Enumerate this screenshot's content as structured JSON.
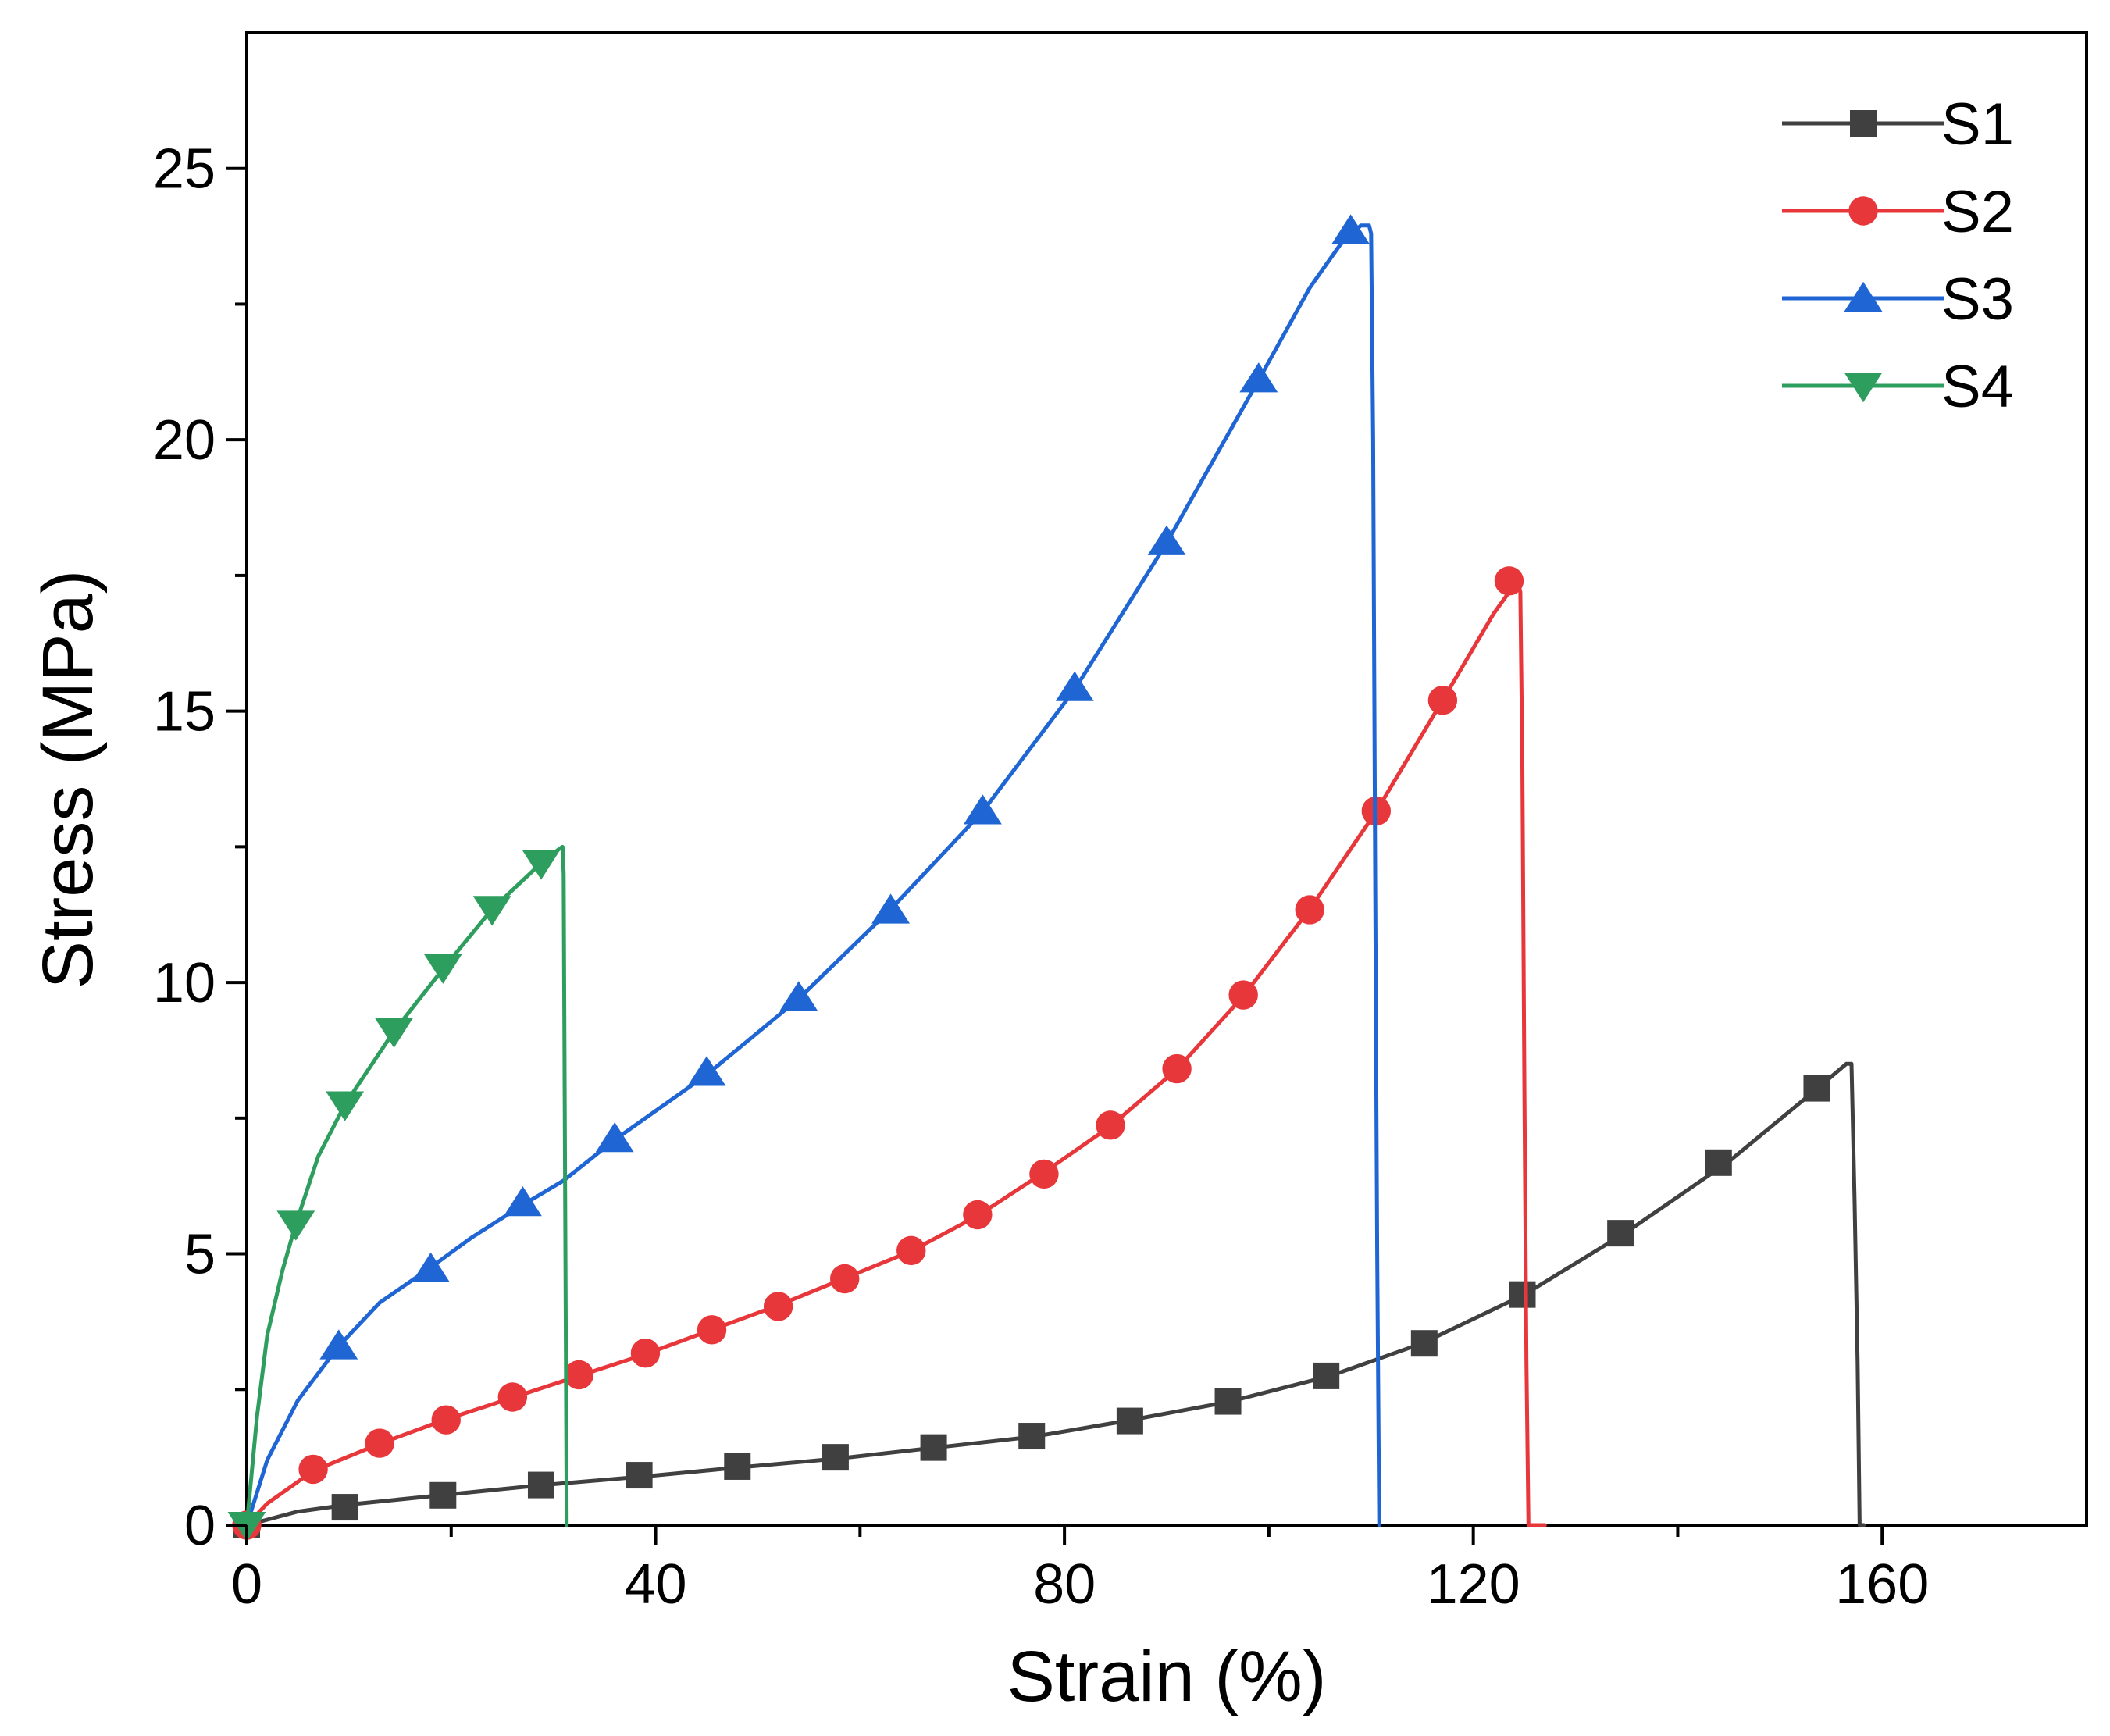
{
  "chart_data": {
    "type": "line",
    "title": "",
    "xlabel": "Strain (%)",
    "ylabel": "Stress (MPa)",
    "xlim": [
      0,
      180
    ],
    "ylim": [
      0,
      27.5
    ],
    "xticks": [
      0,
      40,
      80,
      120,
      160
    ],
    "xticks_minor": [
      20,
      60,
      100,
      140
    ],
    "yticks": [
      0,
      5,
      10,
      15,
      20,
      25
    ],
    "yticks_minor": [
      2.5,
      7.5,
      12.5,
      17.5,
      22.5
    ],
    "grid": false,
    "legend_position": "top-right",
    "series": [
      {
        "name": "S1",
        "color": "#404040",
        "marker": "square",
        "line": [
          [
            0,
            0
          ],
          [
            5,
            0.25
          ],
          [
            10,
            0.38
          ],
          [
            20,
            0.57
          ],
          [
            29,
            0.74
          ],
          [
            39,
            0.9
          ],
          [
            48,
            1.06
          ],
          [
            58,
            1.23
          ],
          [
            67,
            1.42
          ],
          [
            77,
            1.63
          ],
          [
            86,
            1.92
          ],
          [
            96,
            2.27
          ],
          [
            106,
            2.75
          ],
          [
            115,
            3.35
          ],
          [
            125,
            4.25
          ],
          [
            135,
            5.4
          ],
          [
            145,
            6.7
          ],
          [
            154,
            8.1
          ],
          [
            156.5,
            8.5
          ],
          [
            157,
            8.5
          ],
          [
            157.3,
            6.0
          ],
          [
            157.6,
            3.0
          ],
          [
            157.8,
            0
          ],
          [
            158.2,
            0
          ]
        ],
        "markers": [
          [
            0,
            0
          ],
          [
            9.6,
            0.33
          ],
          [
            19.2,
            0.55
          ],
          [
            28.8,
            0.74
          ],
          [
            38.4,
            0.92
          ],
          [
            48,
            1.08
          ],
          [
            57.6,
            1.25
          ],
          [
            67.2,
            1.43
          ],
          [
            76.8,
            1.64
          ],
          [
            86.4,
            1.92
          ],
          [
            96,
            2.28
          ],
          [
            105.6,
            2.75
          ],
          [
            115.2,
            3.35
          ],
          [
            124.8,
            4.25
          ],
          [
            134.4,
            5.38
          ],
          [
            144,
            6.68
          ],
          [
            153.6,
            8.05
          ]
        ]
      },
      {
        "name": "S2",
        "color": "#e8373a",
        "marker": "circle",
        "line": [
          [
            0,
            0
          ],
          [
            2,
            0.4
          ],
          [
            6.5,
            1.0
          ],
          [
            13,
            1.5
          ],
          [
            19.5,
            1.95
          ],
          [
            26,
            2.35
          ],
          [
            32.5,
            2.75
          ],
          [
            39,
            3.15
          ],
          [
            45.5,
            3.6
          ],
          [
            52,
            4.05
          ],
          [
            58.5,
            4.55
          ],
          [
            65,
            5.05
          ],
          [
            71.5,
            5.7
          ],
          [
            78,
            6.5
          ],
          [
            84.5,
            7.35
          ],
          [
            91,
            8.4
          ],
          [
            97.5,
            9.75
          ],
          [
            104,
            11.35
          ],
          [
            110.5,
            13.15
          ],
          [
            117,
            15.2
          ],
          [
            122,
            16.8
          ],
          [
            124.3,
            17.4
          ],
          [
            124.6,
            17.2
          ],
          [
            124.8,
            14.0
          ],
          [
            125.0,
            8.0
          ],
          [
            125.2,
            3.0
          ],
          [
            125.4,
            0
          ],
          [
            127,
            0
          ]
        ],
        "markers": [
          [
            0,
            0
          ],
          [
            6.5,
            1.03
          ],
          [
            13,
            1.51
          ],
          [
            19.5,
            1.94
          ],
          [
            26,
            2.36
          ],
          [
            32.5,
            2.77
          ],
          [
            39,
            3.17
          ],
          [
            45.5,
            3.6
          ],
          [
            52,
            4.03
          ],
          [
            58.5,
            4.54
          ],
          [
            65,
            5.06
          ],
          [
            71.5,
            5.72
          ],
          [
            78,
            6.47
          ],
          [
            84.5,
            7.37
          ],
          [
            91,
            8.41
          ],
          [
            97.5,
            9.77
          ],
          [
            104,
            11.34
          ],
          [
            110.5,
            13.16
          ],
          [
            117,
            15.2
          ],
          [
            123.5,
            17.4
          ]
        ]
      },
      {
        "name": "S3",
        "color": "#1f66d4",
        "marker": "triangle-up",
        "line": [
          [
            0,
            0
          ],
          [
            2,
            1.2
          ],
          [
            5,
            2.3
          ],
          [
            9,
            3.3
          ],
          [
            13,
            4.1
          ],
          [
            18,
            4.75
          ],
          [
            22,
            5.3
          ],
          [
            27,
            5.9
          ],
          [
            31,
            6.35
          ],
          [
            36,
            7.1
          ],
          [
            45,
            8.3
          ],
          [
            54,
            9.7
          ],
          [
            63,
            11.35
          ],
          [
            72,
            13.15
          ],
          [
            81,
            15.4
          ],
          [
            90,
            18.1
          ],
          [
            99,
            21.1
          ],
          [
            104,
            22.8
          ],
          [
            107,
            23.6
          ],
          [
            109,
            23.95
          ],
          [
            109.8,
            23.95
          ],
          [
            110,
            23.8
          ],
          [
            110.2,
            20
          ],
          [
            110.4,
            12
          ],
          [
            110.6,
            5
          ],
          [
            110.8,
            0
          ]
        ],
        "markers": [
          [
            9,
            3.3
          ],
          [
            18,
            4.72
          ],
          [
            27,
            5.94
          ],
          [
            36,
            7.12
          ],
          [
            45,
            8.34
          ],
          [
            54,
            9.72
          ],
          [
            63,
            11.33
          ],
          [
            72,
            13.16
          ],
          [
            81,
            15.43
          ],
          [
            90,
            18.12
          ],
          [
            99,
            21.12
          ],
          [
            108,
            23.85
          ]
        ]
      },
      {
        "name": "S4",
        "color": "#2e9e5e",
        "marker": "triangle-down",
        "line": [
          [
            0,
            0
          ],
          [
            1,
            2.0
          ],
          [
            2,
            3.5
          ],
          [
            3.5,
            4.7
          ],
          [
            4.8,
            5.55
          ],
          [
            7,
            6.8
          ],
          [
            9.6,
            7.75
          ],
          [
            14.4,
            9.1
          ],
          [
            19.2,
            10.25
          ],
          [
            24,
            11.35
          ],
          [
            28.8,
            12.2
          ],
          [
            30.5,
            12.45
          ],
          [
            30.9,
            12.5
          ],
          [
            31.0,
            12.0
          ],
          [
            31.1,
            8.0
          ],
          [
            31.2,
            4.0
          ],
          [
            31.3,
            0
          ]
        ],
        "markers": [
          [
            0,
            0
          ],
          [
            4.8,
            5.55
          ],
          [
            9.6,
            7.75
          ],
          [
            14.4,
            9.1
          ],
          [
            19.2,
            10.28
          ],
          [
            24,
            11.35
          ],
          [
            28.8,
            12.2
          ]
        ]
      }
    ]
  }
}
